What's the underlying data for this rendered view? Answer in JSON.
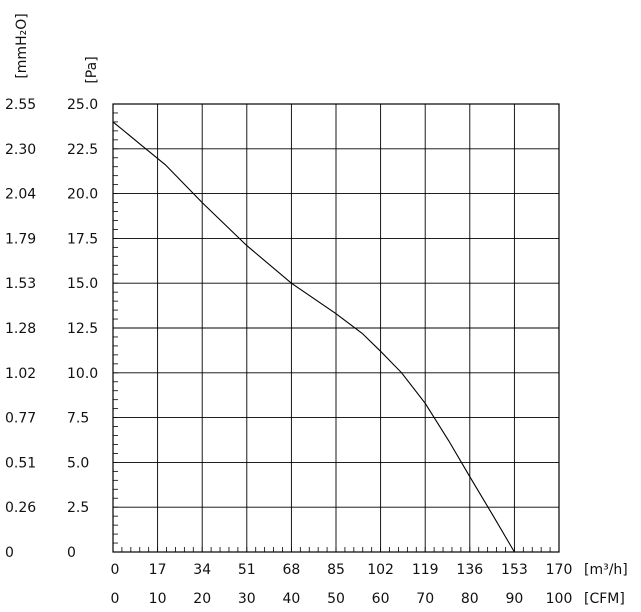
{
  "chart_data": {
    "type": "line",
    "title": "",
    "grid": true,
    "legend": "none",
    "line_color": "#000000",
    "x_axis_primary": {
      "unit": "[m³/h]",
      "range": [
        0,
        170
      ],
      "ticks": [
        0,
        17,
        34,
        51,
        68,
        85,
        102,
        119,
        136,
        153,
        170
      ]
    },
    "x_axis_secondary": {
      "unit": "[CFM]",
      "range": [
        0,
        100
      ],
      "ticks": [
        0,
        10,
        20,
        30,
        40,
        50,
        60,
        70,
        80,
        90,
        100
      ]
    },
    "y_axis_primary": {
      "unit": "[Pa]",
      "range": [
        0,
        25
      ],
      "tick_labels": [
        "0",
        "2.5",
        "5.0",
        "7.5",
        "10.0",
        "12.5",
        "15.0",
        "17.5",
        "20.0",
        "22.5",
        "25.0"
      ]
    },
    "y_axis_secondary": {
      "unit": "[mmH₂O]",
      "tick_labels": [
        "0",
        "0.26",
        "0.51",
        "0.77",
        "1.02",
        "1.28",
        "1.53",
        "1.79",
        "2.04",
        "2.30",
        "2.55"
      ]
    },
    "series": [
      {
        "x": [
          0,
          10,
          20,
          34,
          51,
          68,
          85,
          95,
          102,
          110,
          119,
          128,
          136,
          145,
          153
        ],
        "y": [
          24.0,
          22.8,
          21.6,
          19.5,
          17.1,
          15.0,
          13.3,
          12.2,
          11.2,
          10.0,
          8.3,
          6.2,
          4.2,
          2.0,
          0
        ]
      }
    ]
  }
}
